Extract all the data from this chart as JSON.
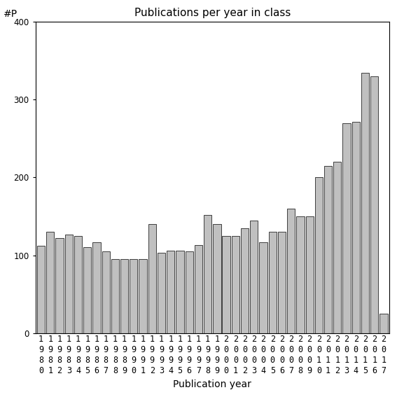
{
  "title": "Publications per year in class",
  "xlabel": "Publication year",
  "ylabel": "#P",
  "years": [
    1980,
    1981,
    1982,
    1983,
    1984,
    1985,
    1986,
    1987,
    1988,
    1989,
    1990,
    1991,
    1992,
    1993,
    1994,
    1995,
    1996,
    1997,
    1998,
    1999,
    2000,
    2001,
    2002,
    2003,
    2004,
    2005,
    2006,
    2007,
    2008,
    2009,
    2010,
    2011,
    2012,
    2013,
    2014,
    2015,
    2016,
    2017
  ],
  "values": [
    112,
    130,
    122,
    127,
    125,
    110,
    117,
    105,
    95,
    95,
    95,
    95,
    140,
    103,
    106,
    106,
    105,
    113,
    152,
    140,
    125,
    125,
    135,
    145,
    117,
    130,
    130,
    160,
    150,
    150,
    200,
    215,
    220,
    270,
    272,
    335,
    330,
    25
  ],
  "bar_color": "#c0c0c0",
  "bar_edge_color": "#000000",
  "bar_edge_width": 0.5,
  "ylim": [
    0,
    400
  ],
  "yticks": [
    0,
    100,
    200,
    300,
    400
  ],
  "background_color": "#ffffff",
  "title_fontsize": 11,
  "axis_fontsize": 10,
  "tick_fontsize": 8.5
}
